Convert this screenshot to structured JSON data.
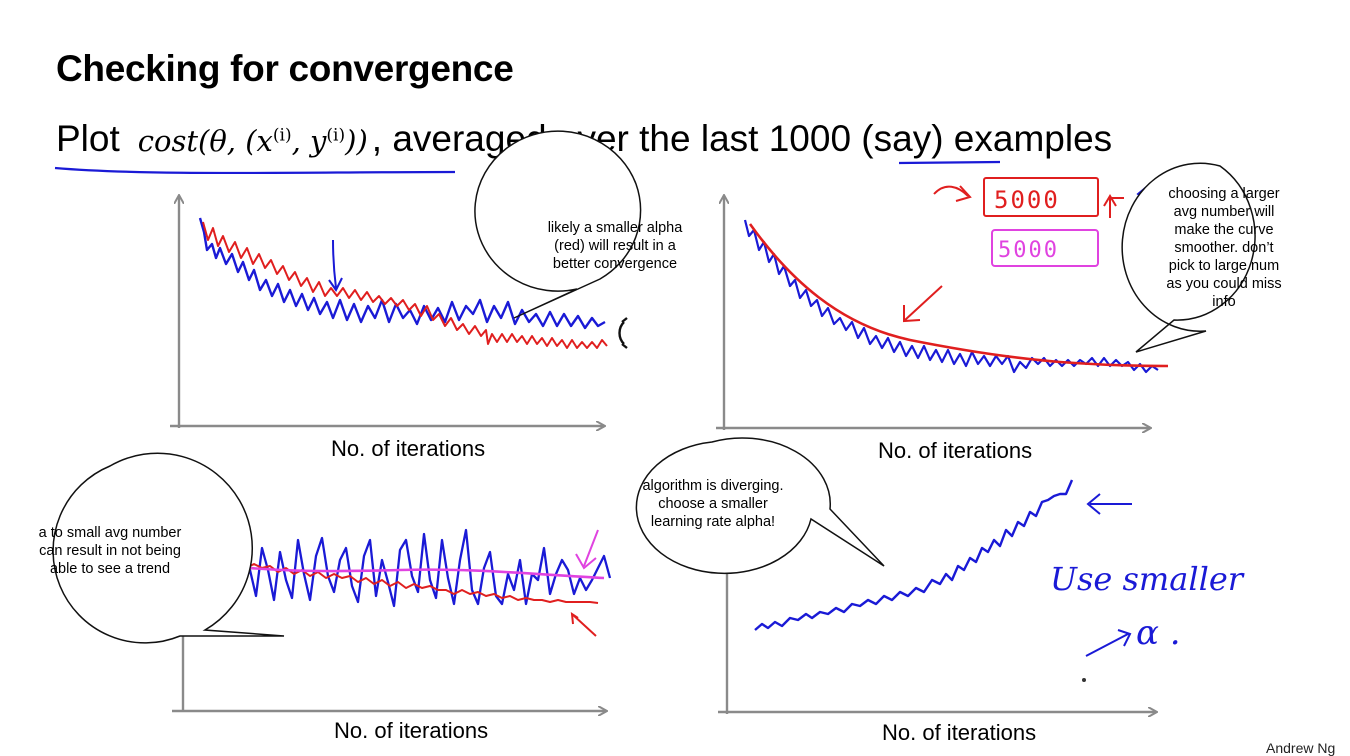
{
  "slide": {
    "title": "Checking for convergence",
    "subtitle_prefix": "Plot",
    "formula": "cost(θ, (x(i), y(i)))",
    "subtitle_suffix": ", averaged over the last 1000 (say) examples",
    "byline": "Andrew Ng"
  },
  "plots": [
    {
      "id": "top-left",
      "xlabel": "No. of iterations",
      "series_colors": [
        "#1a1ad6",
        "#e01f1f"
      ]
    },
    {
      "id": "top-right",
      "xlabel": "No. of iterations",
      "series_colors": [
        "#1a1ad6",
        "#e01f1f"
      ]
    },
    {
      "id": "bottom-left",
      "xlabel": "No. of iterations",
      "series_colors": [
        "#1a1ad6",
        "#e01f1f",
        "#e043e0"
      ]
    },
    {
      "id": "bottom-right",
      "xlabel": "No. of iterations",
      "series_colors": [
        "#1a1ad6"
      ]
    }
  ],
  "bubbles": [
    {
      "text": "likely a smaller alpha (red) will result in a better convergence"
    },
    {
      "text": "choosing a larger avg number will make the curve smoother. don’t pick to large num as you could miss info"
    },
    {
      "text": "a to small avg number can result in not being able to see a trend"
    },
    {
      "text": "algorithm is diverging. choose a smaller learning rate alpha!"
    }
  ],
  "handwritten": {
    "boxed_red": "5000",
    "boxed_magenta": "5000",
    "note": "Use smaller",
    "symbol": "α ."
  },
  "colors": {
    "ink_blue": "#1a1ad6",
    "ink_red": "#e01f1f",
    "ink_magenta": "#e043e0",
    "axis": "#8a8a8a"
  }
}
